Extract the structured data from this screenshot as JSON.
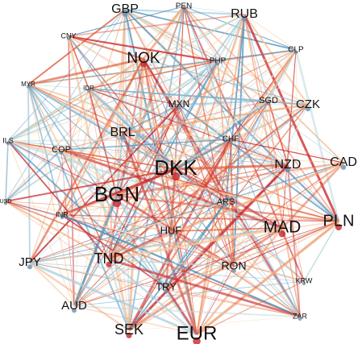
{
  "nodes": [
    {
      "label": "GBP"
    },
    {
      "label": "PEN"
    },
    {
      "label": "RUB"
    },
    {
      "label": "CNY"
    },
    {
      "label": "CLP"
    },
    {
      "label": "NOK"
    },
    {
      "label": "PHP"
    },
    {
      "label": "MYR"
    },
    {
      "label": "IDR"
    },
    {
      "label": "MXN"
    },
    {
      "label": "SGD"
    },
    {
      "label": "CZK"
    },
    {
      "label": "BRL"
    },
    {
      "label": "CHF"
    },
    {
      "label": "ILS"
    },
    {
      "label": "COP"
    },
    {
      "label": "DKK"
    },
    {
      "label": "NZD"
    },
    {
      "label": "CAD"
    },
    {
      "label": "USD"
    },
    {
      "label": "BGN"
    },
    {
      "label": "ARS"
    },
    {
      "label": "INR"
    },
    {
      "label": "MAD"
    },
    {
      "label": "PLN"
    },
    {
      "label": "HUF"
    },
    {
      "label": "JPY"
    },
    {
      "label": "TND"
    },
    {
      "label": "RON"
    },
    {
      "label": "KRW"
    },
    {
      "label": "TRY"
    },
    {
      "label": "AUD"
    },
    {
      "label": "ZAR"
    },
    {
      "label": "SEK"
    },
    {
      "label": "EUR"
    }
  ]
}
